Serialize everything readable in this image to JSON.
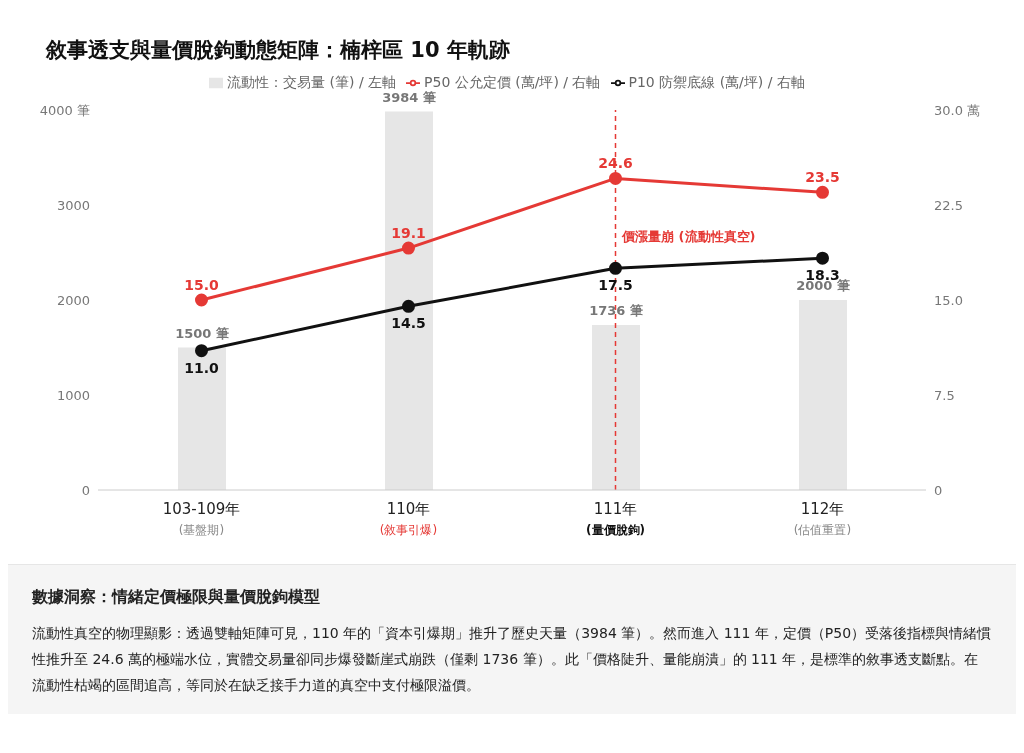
{
  "chart_data": {
    "type": "bar",
    "title": "敘事透支與量價脫鉤動態矩陣：楠梓區 10 年軌跡",
    "categories": [
      "103-109年\n(基盤期)",
      "110年\n(敘事引爆)",
      "111年\n(量價脫鉤)",
      "112年\n(估值重置)"
    ],
    "series": [
      {
        "name": "流動性：交易量 (筆) / 左軸",
        "color": "#e6e6e6",
        "values": [
          1500,
          3984,
          1736,
          2000
        ],
        "value_labels": [
          "1500 筆",
          "3984 筆",
          "1736 筆",
          "2000 筆"
        ]
      },
      {
        "name": "P50 公允定價 (萬/坪) / 右軸",
        "type": "line",
        "axis": "y2",
        "color": "#e53935",
        "values": [
          15.0,
          19.1,
          24.6,
          23.5
        ],
        "value_labels": [
          "15.0",
          "19.1",
          "24.6",
          "23.5"
        ]
      },
      {
        "name": "P10 防禦底線 (萬/坪) / 右軸",
        "type": "line",
        "axis": "y2",
        "color": "#111111",
        "values": [
          11.0,
          14.5,
          17.5,
          18.3
        ],
        "value_labels": [
          "11.0",
          "14.5",
          "17.5",
          "18.3"
        ]
      }
    ],
    "ylim": [
      0,
      4000
    ],
    "yticks": [
      0,
      1000,
      2000,
      3000,
      {
        "value": 4000,
        "label": "4000 筆"
      }
    ],
    "y2lim": [
      0,
      30
    ],
    "y2ticks": [
      0,
      7.5,
      {
        "value": 15,
        "label": "15.0"
      },
      22.5,
      {
        "value": 30,
        "label": "30.0 萬"
      }
    ],
    "ref_lines": [
      {
        "axis": "x",
        "value": "111年\n(量價脫鉤)",
        "label": "價漲量崩 (流動性真空)",
        "color": "#e53935",
        "line_style": "dashed"
      }
    ],
    "marker": "circle",
    "grid": false,
    "legend": "top",
    "annotations": [
      "數據洞察：情緒定價極限與量價脫鉤模型",
      "流動性真空的物理顯影：透過雙軸矩陣可見，110 年的「資本引爆期」推升了歷史天量（3984 筆）。然而進入 111 年，定價（P50）受落後指標與情緒慣性推升至 24.6 萬的極端水位，實體交易量卻同步爆發斷崖式崩跌（僅剩 1736 筆）。此「價格陡升、量能崩潰」的 111 年，是標準的敘事透支斷點。在流動性枯竭的區間追高，等同於在缺乏接手力道的真空中支付極限溢價。"
    ]
  }
}
